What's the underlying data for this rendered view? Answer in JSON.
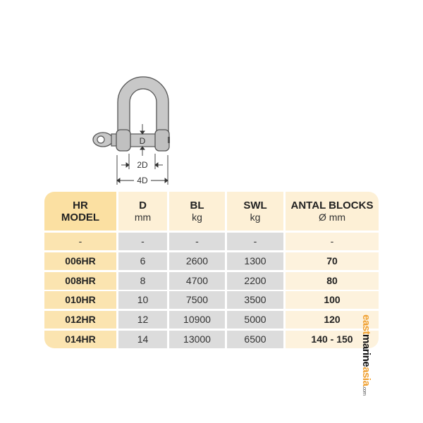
{
  "diagram": {
    "pin_label": "D",
    "inner_width_label": "2D",
    "outer_width_label": "4D"
  },
  "table": {
    "headers": [
      {
        "title": "HR",
        "sub": "MODEL"
      },
      {
        "title": "D",
        "sub": "mm"
      },
      {
        "title": "BL",
        "sub": "kg"
      },
      {
        "title": "SWL",
        "sub": "kg"
      },
      {
        "title": "ANTAL BLOCKS",
        "sub": "Ø mm"
      }
    ],
    "rows": [
      [
        "-",
        "-",
        "-",
        "-",
        "-"
      ],
      [
        "006HR",
        "6",
        "2600",
        "1300",
        "70"
      ],
      [
        "008HR",
        "8",
        "4700",
        "2200",
        "80"
      ],
      [
        "010HR",
        "10",
        "7500",
        "3500",
        "100"
      ],
      [
        "012HR",
        "12",
        "10900",
        "5000",
        "120"
      ],
      [
        "014HR",
        "14",
        "13000",
        "6500",
        "140 - 150"
      ]
    ]
  },
  "watermark": {
    "part1": "east",
    "part2": "marine",
    "part3": "asia",
    "part4": ".com"
  },
  "colors": {
    "header_first": "#fbe0a2",
    "header": "#fdf0d6",
    "model_col": "#fbe4b0",
    "data": "#dcdcdc",
    "last_col": "#fdf2dd"
  }
}
